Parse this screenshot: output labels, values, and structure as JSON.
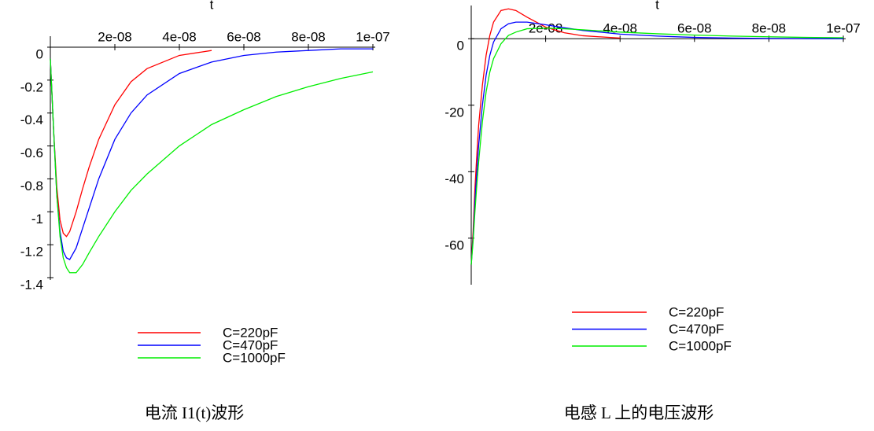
{
  "chart_data": [
    {
      "type": "line",
      "x_label": "t",
      "caption": "电流 I1(t)波形",
      "x": [
        0,
        1e-09,
        2e-09,
        3e-09,
        4e-09,
        5e-09,
        6e-09,
        8e-09,
        1e-08,
        1.2e-08,
        1.5e-08,
        2e-08,
        2.5e-08,
        3e-08,
        4e-08,
        5e-08,
        6e-08,
        7e-08,
        8e-08,
        9e-08,
        1e-07
      ],
      "series": [
        {
          "name": "C=220pF",
          "color": "#ff0000",
          "values": [
            -0.07,
            -0.5,
            -0.85,
            -1.05,
            -1.13,
            -1.15,
            -1.12,
            -1.0,
            -0.86,
            -0.73,
            -0.56,
            -0.35,
            -0.21,
            -0.13,
            -0.05,
            -0.02,
            null,
            null,
            null,
            null,
            null
          ]
        },
        {
          "name": "C=470pF",
          "color": "#0000ff",
          "values": [
            -0.07,
            -0.5,
            -0.9,
            -1.12,
            -1.24,
            -1.28,
            -1.29,
            -1.22,
            -1.1,
            -0.98,
            -0.8,
            -0.56,
            -0.4,
            -0.29,
            -0.16,
            -0.09,
            -0.05,
            -0.03,
            -0.02,
            -0.01,
            -0.01
          ]
        },
        {
          "name": "C=1000pF",
          "color": "#00ee00",
          "values": [
            -0.07,
            -0.5,
            -0.9,
            -1.15,
            -1.28,
            -1.34,
            -1.37,
            -1.37,
            -1.32,
            -1.25,
            -1.15,
            -1.0,
            -0.87,
            -0.77,
            -0.6,
            -0.47,
            -0.38,
            -0.3,
            -0.24,
            -0.19,
            -0.15
          ]
        }
      ],
      "xlim": [
        0,
        1e-07
      ],
      "ylim": [
        -1.4,
        0
      ],
      "xticks": [
        {
          "value": 2e-08,
          "label": "2e-08"
        },
        {
          "value": 4e-08,
          "label": "4e-08"
        },
        {
          "value": 6e-08,
          "label": "6e-08"
        },
        {
          "value": 8e-08,
          "label": "8e-08"
        },
        {
          "value": 1e-07,
          "label": "1e-07"
        }
      ],
      "yticks": [
        0,
        -0.2,
        -0.4,
        -0.6,
        -0.8,
        -1,
        -1.2,
        -1.4
      ]
    },
    {
      "type": "line",
      "x_label": "t",
      "caption": "电感 L 上的电压波形",
      "x": [
        0,
        5e-10,
        1e-09,
        1.5e-09,
        2e-09,
        3e-09,
        4e-09,
        5e-09,
        6e-09,
        8e-09,
        1e-08,
        1.2e-08,
        1.5e-08,
        2e-08,
        2.5e-08,
        3e-08,
        4e-08,
        5e-08,
        6e-08,
        7e-08,
        8e-08,
        9e-08,
        1e-07
      ],
      "series": [
        {
          "name": "C=220pF",
          "color": "#ff0000",
          "values": [
            -68,
            -58,
            -45,
            -35,
            -26,
            -14,
            -5,
            1,
            5,
            8.5,
            9,
            8.5,
            6.5,
            3.5,
            1.8,
            0.9,
            0.2,
            null,
            null,
            null,
            null,
            null,
            null
          ]
        },
        {
          "name": "C=470pF",
          "color": "#0000ff",
          "values": [
            -68,
            -60,
            -49,
            -40,
            -32,
            -20,
            -11,
            -5,
            -1,
            3,
            4.5,
            5,
            5,
            4.2,
            3.3,
            2.5,
            1.4,
            0.8,
            0.4,
            0.2,
            0.1,
            0.05,
            0
          ]
        },
        {
          "name": "C=1000pF",
          "color": "#00ee00",
          "values": [
            -68,
            -61,
            -52,
            -44,
            -37,
            -25,
            -16,
            -10,
            -6,
            -1.5,
            1,
            2,
            3,
            3.2,
            3,
            2.7,
            2,
            1.5,
            1.1,
            0.8,
            0.6,
            0.4,
            0.3
          ]
        }
      ],
      "xlim": [
        0,
        1e-07
      ],
      "ylim": [
        -74,
        10
      ],
      "xticks": [
        {
          "value": 2e-08,
          "label": "2e-08"
        },
        {
          "value": 4e-08,
          "label": "4e-08"
        },
        {
          "value": 6e-08,
          "label": "6e-08"
        },
        {
          "value": 8e-08,
          "label": "8e-08"
        },
        {
          "value": 1e-07,
          "label": "1e-07"
        }
      ],
      "yticks": [
        0,
        -20,
        -40,
        -60
      ]
    }
  ]
}
